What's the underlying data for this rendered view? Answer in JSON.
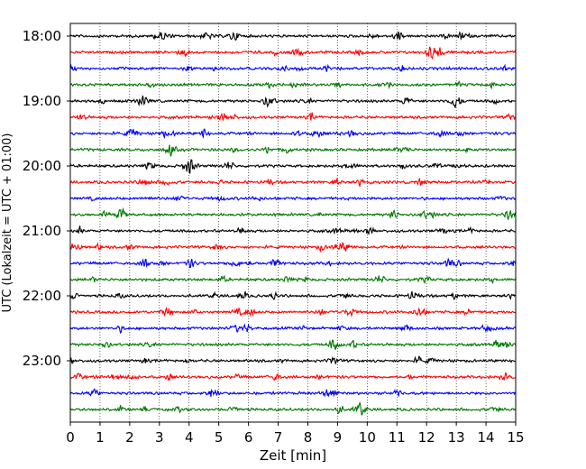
{
  "chart_data": {
    "type": "line",
    "title": "",
    "xlabel": "Zeit  [min]",
    "ylabel": "UTC (Lokalzeit = UTC + 01:00)",
    "xlim": [
      0,
      15
    ],
    "x_ticks": [
      0,
      1,
      2,
      3,
      4,
      5,
      6,
      7,
      8,
      9,
      10,
      11,
      12,
      13,
      14,
      15
    ],
    "x_tick_labels": [
      "0",
      "1",
      "2",
      "3",
      "4",
      "5",
      "6",
      "7",
      "8",
      "9",
      "10",
      "11",
      "12",
      "13",
      "14",
      "15"
    ],
    "y_tick_labels": [
      "18:00",
      "19:00",
      "20:00",
      "21:00",
      "22:00",
      "23:00"
    ],
    "y_tick_rows": [
      0,
      4,
      8,
      12,
      16,
      20
    ],
    "row_minutes": 15,
    "start_time": "18:00",
    "grid": "vertical dotted",
    "trace_colors": [
      "#000000",
      "#ff0000",
      "#0000ff",
      "#007700"
    ],
    "series": [
      {
        "start": "18:00",
        "color": "#000000"
      },
      {
        "start": "18:15",
        "color": "#ff0000"
      },
      {
        "start": "18:30",
        "color": "#0000ff"
      },
      {
        "start": "18:45",
        "color": "#007700"
      },
      {
        "start": "19:00",
        "color": "#000000"
      },
      {
        "start": "19:15",
        "color": "#ff0000"
      },
      {
        "start": "19:30",
        "color": "#0000ff"
      },
      {
        "start": "19:45",
        "color": "#007700"
      },
      {
        "start": "20:00",
        "color": "#000000"
      },
      {
        "start": "20:15",
        "color": "#ff0000"
      },
      {
        "start": "20:30",
        "color": "#0000ff"
      },
      {
        "start": "20:45",
        "color": "#007700"
      },
      {
        "start": "21:00",
        "color": "#000000"
      },
      {
        "start": "21:15",
        "color": "#ff0000"
      },
      {
        "start": "21:30",
        "color": "#0000ff"
      },
      {
        "start": "21:45",
        "color": "#007700"
      },
      {
        "start": "22:00",
        "color": "#000000"
      },
      {
        "start": "22:15",
        "color": "#ff0000"
      },
      {
        "start": "22:30",
        "color": "#0000ff"
      },
      {
        "start": "22:45",
        "color": "#007700"
      },
      {
        "start": "23:00",
        "color": "#000000"
      },
      {
        "start": "23:15",
        "color": "#ff0000"
      },
      {
        "start": "23:30",
        "color": "#0000ff"
      },
      {
        "start": "23:45",
        "color": "#007700"
      }
    ]
  }
}
